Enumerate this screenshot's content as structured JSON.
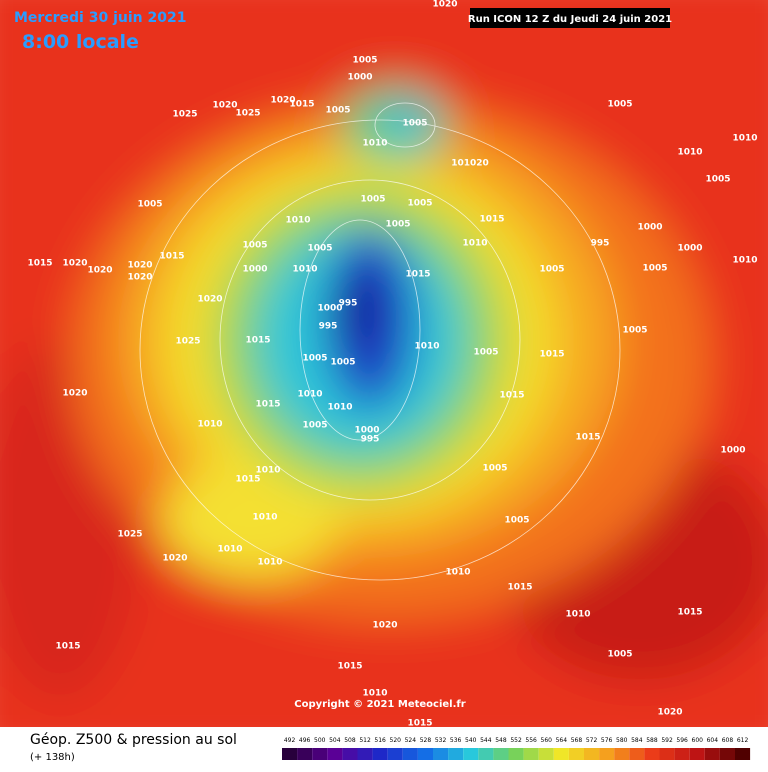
{
  "header": {
    "date": "Mercredi 30 juin 2021",
    "time": "8:00 locale",
    "run": "Run ICON 12 Z du Jeudi 24 juin 2021"
  },
  "footer": {
    "title": "Géop. Z500 & pression au sol",
    "lead": "(+ 138h)",
    "copyright": "Copyright © 2021 Meteociel.fr"
  },
  "scale": {
    "values": [
      492,
      496,
      500,
      504,
      508,
      512,
      516,
      520,
      524,
      528,
      532,
      536,
      540,
      544,
      548,
      552,
      556,
      560,
      564,
      568,
      572,
      576,
      580,
      584,
      588,
      592,
      596,
      600,
      604,
      608,
      612
    ]
  },
  "isobar_labels": [
    "1020",
    "1000",
    "1005",
    "1005",
    "1005",
    "1010",
    "1020",
    "1015",
    "1020",
    "1025",
    "1025",
    "1005",
    "1010",
    "1010",
    "1005",
    "101020",
    "1005",
    "1005",
    "1005",
    "1015",
    "1010",
    "1010",
    "1005",
    "1005",
    "1000",
    "1010",
    "1015",
    "1005",
    "995",
    "1000",
    "1000",
    "1005",
    "1010",
    "1005",
    "1020",
    "1020",
    "1015",
    "1015",
    "1020",
    "1020",
    "1020",
    "1000",
    "995",
    "995",
    "1010",
    "1005",
    "1015",
    "1005",
    "1025",
    "1015",
    "1005",
    "1005",
    "1020",
    "1015",
    "1010",
    "1010",
    "1015",
    "1010",
    "1005",
    "1000",
    "995",
    "1015",
    "1000",
    "1010",
    "1015",
    "1005",
    "1010",
    "1005",
    "1025",
    "1020",
    "1010",
    "1010",
    "1010",
    "1015",
    "1020",
    "1015",
    "1015",
    "1010",
    "1015",
    "1010",
    "1015",
    "1005",
    "1020"
  ]
}
